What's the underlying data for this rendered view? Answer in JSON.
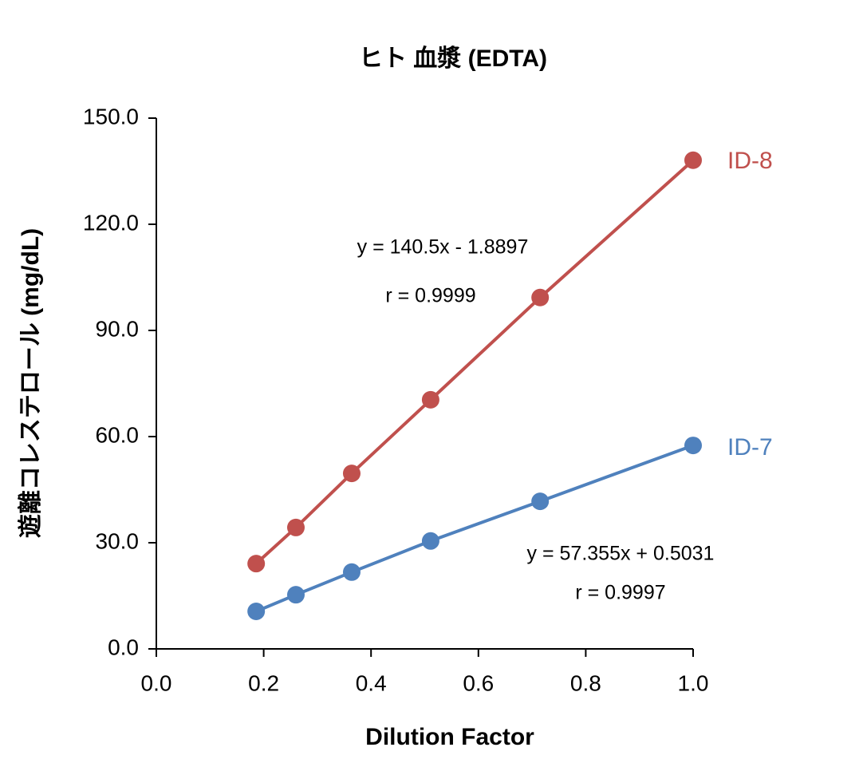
{
  "chart_data": {
    "type": "line",
    "title": "ヒト 血漿 (EDTA)",
    "x_label": "Dilution Factor",
    "y_label": "遊離コレステロール (mg/dL)",
    "x": [
      0.186,
      0.26,
      0.364,
      0.511,
      0.715,
      1.0
    ],
    "series": [
      {
        "name": "ID-8",
        "color": "#c0504d",
        "values": [
          24.1,
          34.3,
          49.6,
          70.4,
          99.3,
          138.1
        ]
      },
      {
        "name": "ID-7",
        "color": "#4f81bd",
        "values": [
          10.6,
          15.3,
          21.7,
          30.5,
          41.7,
          57.5
        ]
      }
    ],
    "annotations": [
      "y = 140.5x - 1.8897",
      "r = 0.9999",
      "y = 57.355x + 0.5031",
      "r = 0.9997"
    ],
    "xlim": [
      0,
      1
    ],
    "ylim": [
      0,
      150
    ],
    "xticks": [
      {
        "value": 0,
        "label": "0.0"
      },
      0.2,
      0.4,
      0.6,
      0.8,
      {
        "value": 1,
        "label": "1.0"
      }
    ],
    "yticks": [
      {
        "value": 0,
        "label": "0.0"
      },
      {
        "value": 30,
        "label": "30.0"
      },
      {
        "value": 60,
        "label": "60.0"
      },
      {
        "value": 90,
        "label": "90.0"
      },
      {
        "value": 120,
        "label": "120.0"
      },
      {
        "value": 150,
        "label": "150.0"
      }
    ]
  }
}
